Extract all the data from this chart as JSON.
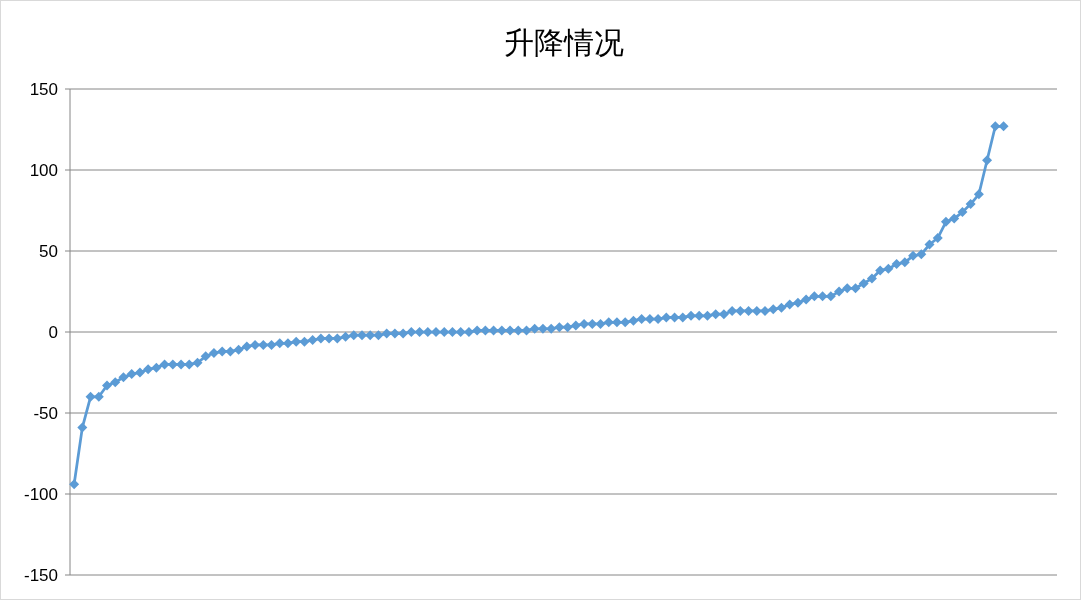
{
  "chart_data": {
    "type": "line",
    "title": "升降情况",
    "categories": [
      null,
      null,
      null,
      null,
      null,
      null,
      null,
      null,
      null,
      null,
      null,
      null,
      null,
      null,
      null,
      null,
      null,
      null,
      null,
      null,
      null,
      null,
      null,
      null,
      null,
      null,
      null,
      null,
      null,
      null,
      null,
      null,
      null,
      null,
      null,
      null,
      null,
      null,
      null,
      null,
      null,
      null,
      null,
      null,
      null,
      null,
      null,
      null,
      null,
      null,
      null,
      null,
      null,
      null,
      null,
      null,
      null,
      null,
      null,
      null,
      null,
      null,
      null,
      null,
      null,
      null,
      null,
      null,
      null,
      null,
      null,
      null,
      null,
      null,
      null,
      null,
      null,
      null,
      null,
      null,
      null,
      null,
      null,
      null,
      null,
      null,
      null,
      null,
      null,
      null,
      null,
      null,
      null,
      null,
      null,
      null,
      null,
      null,
      null,
      null,
      null,
      null,
      null,
      null,
      null,
      null,
      null,
      null,
      null,
      null,
      null,
      null,
      null,
      null,
      null,
      null,
      null,
      null,
      null,
      null
    ],
    "series": [
      {
        "color": "#5b9bd5",
        "values": [
          -94,
          -59,
          -40,
          -40,
          -33,
          -31,
          -28,
          -26,
          -25,
          -23,
          -22,
          -20,
          -20,
          -20,
          -20,
          -19,
          -15,
          -13,
          -12,
          -12,
          -11,
          -9,
          -8,
          -8,
          -8,
          -7,
          -7,
          -6,
          -6,
          -5,
          -4,
          -4,
          -4,
          -3,
          -2,
          -2,
          -2,
          -2,
          -1,
          -1,
          -1,
          0,
          0,
          0,
          0,
          0,
          0,
          0,
          0,
          1,
          1,
          1,
          1,
          1,
          1,
          1,
          2,
          2,
          2,
          3,
          3,
          4,
          5,
          5,
          5,
          6,
          6,
          6,
          7,
          8,
          8,
          8,
          9,
          9,
          9,
          10,
          10,
          10,
          11,
          11,
          13,
          13,
          13,
          13,
          13,
          14,
          15,
          17,
          18,
          20,
          22,
          22,
          22,
          25,
          27,
          27,
          30,
          33,
          38,
          39,
          42,
          43,
          47,
          48,
          54,
          58,
          68,
          70,
          74,
          79,
          85,
          106,
          127,
          127,
          null,
          null,
          null,
          null,
          null,
          null
        ]
      }
    ],
    "ylim": [
      -150,
      150
    ],
    "yticks": [
      -150,
      -100,
      -50,
      0,
      50,
      100,
      150
    ],
    "grid": "y",
    "marker": "diamond",
    "line_style": "solid",
    "tick_labels": "y"
  }
}
